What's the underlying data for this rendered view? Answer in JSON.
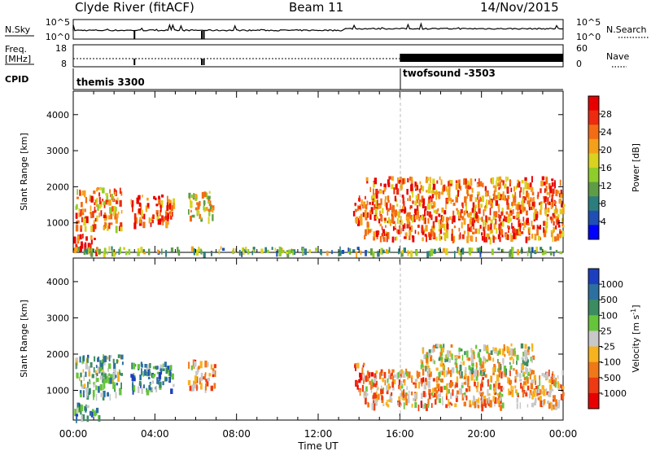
{
  "header": {
    "station": "Clyde River (fitACF)",
    "beam": "Beam 11",
    "date": "14/Nov/2015"
  },
  "noise_panel": {
    "left_label": "N.Sky",
    "left_ticks": [
      "10^5",
      "10^0"
    ],
    "right_ticks": [
      "10^5",
      "10^0"
    ],
    "right_label": "N.Search"
  },
  "freq_panel": {
    "left_label_1": "Freq.",
    "left_label_2": "[MHz]",
    "left_ticks": [
      "18",
      "8"
    ],
    "right_ticks": [
      "60",
      "0"
    ],
    "right_label": "Nave"
  },
  "cpid": {
    "label": "CPID",
    "modes": [
      {
        "name": "themis 3300",
        "start_hour": 0
      },
      {
        "name": "twofsound -3503",
        "start_hour": 16
      }
    ]
  },
  "chart_data": [
    {
      "type": "heatmap",
      "title": "",
      "xlabel": "Time UT",
      "ylabel": "Slant Range [km]",
      "x_ticks": [
        "00:00",
        "04:00",
        "08:00",
        "12:00",
        "16:00",
        "20:00",
        "00:00"
      ],
      "x_range_hours": [
        0,
        24
      ],
      "y_ticks": [
        "1000",
        "2000",
        "3000",
        "4000"
      ],
      "ylim": [
        180,
        4650
      ],
      "colorbar": {
        "label": "Power [dB]",
        "ticks": [
          "4",
          "8",
          "12",
          "16",
          "20",
          "24",
          "28"
        ],
        "colors": [
          "#0000ff",
          "#1f4fb4",
          "#2c7e7e",
          "#5f9c46",
          "#8fcd2a",
          "#d9d21e",
          "#f5a01a",
          "#f36c14",
          "#ee2a10",
          "#e80000"
        ]
      },
      "echo_regions": [
        {
          "t0": 0.0,
          "t1": 1.3,
          "r0": 250,
          "r1": 700,
          "level": 0.85
        },
        {
          "t0": 0.1,
          "t1": 2.4,
          "r0": 900,
          "r1": 2000,
          "level": 0.7
        },
        {
          "t0": 2.8,
          "t1": 4.9,
          "r0": 1000,
          "r1": 1800,
          "level": 0.8
        },
        {
          "t0": 5.6,
          "t1": 6.9,
          "r0": 1100,
          "r1": 1900,
          "level": 0.55
        },
        {
          "t0": 13.7,
          "t1": 14.2,
          "r0": 1000,
          "r1": 1800,
          "level": 0.85
        },
        {
          "t0": 14.2,
          "t1": 24.0,
          "r0": 600,
          "r1": 2300,
          "level": 0.75
        },
        {
          "t0": 0.0,
          "t1": 24.0,
          "r0": 200,
          "r1": 350,
          "level": 0.4
        }
      ]
    },
    {
      "type": "heatmap",
      "title": "",
      "xlabel": "Time UT",
      "ylabel": "Slant Range [km]",
      "x_ticks": [
        "00:00",
        "04:00",
        "08:00",
        "12:00",
        "16:00",
        "20:00",
        "00:00"
      ],
      "x_range_hours": [
        0,
        24
      ],
      "y_ticks": [
        "1000",
        "2000",
        "3000",
        "4000"
      ],
      "ylim": [
        180,
        4650
      ],
      "colorbar": {
        "label": "Velocity [m s^-1]",
        "ticks": [
          "1000",
          "500",
          "100",
          "25",
          "-25",
          "-100",
          "-500",
          "-1000"
        ],
        "colors": [
          "#1c3fbf",
          "#2c70a0",
          "#3c8c62",
          "#66c43a",
          "#c8c8c8",
          "#f7b21e",
          "#f07818",
          "#ee3a12",
          "#e80000"
        ]
      },
      "echo_regions": [
        {
          "t0": 0.0,
          "t1": 1.3,
          "r0": 250,
          "r1": 700,
          "level": 0.3
        },
        {
          "t0": 0.1,
          "t1": 2.4,
          "r0": 900,
          "r1": 2000,
          "level": 0.35
        },
        {
          "t0": 2.8,
          "t1": 4.9,
          "r0": 1000,
          "r1": 1800,
          "level": 0.3
        },
        {
          "t0": 5.6,
          "t1": 6.9,
          "r0": 1100,
          "r1": 1900,
          "level": 0.65
        },
        {
          "t0": 13.7,
          "t1": 14.2,
          "r0": 1000,
          "r1": 1800,
          "level": 0.85
        },
        {
          "t0": 14.2,
          "t1": 24.0,
          "r0": 600,
          "r1": 1600,
          "level": 0.65
        },
        {
          "t0": 17.0,
          "t1": 22.5,
          "r0": 1500,
          "r1": 2300,
          "level": 0.5
        }
      ]
    }
  ]
}
